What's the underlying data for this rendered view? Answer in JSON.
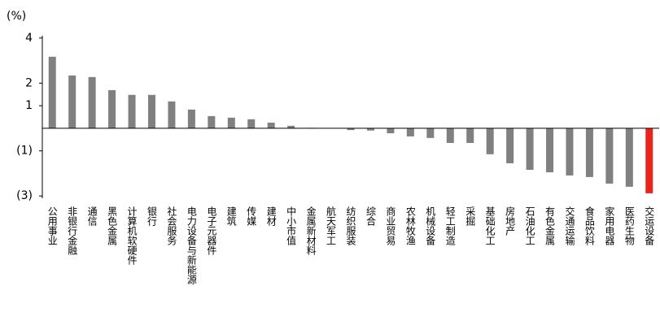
{
  "chart_data": {
    "type": "bar",
    "y_label": "(%)",
    "categories": [
      "公用事业",
      "非银行金融",
      "通信",
      "黑色金属",
      "计算机软硬件",
      "银行",
      "社会服务",
      "电力设备与新能源",
      "电子元器件",
      "建筑",
      "传媒",
      "建材",
      "中小市值",
      "金属新材料",
      "航天军工",
      "纺织服装",
      "综合",
      "商业贸易",
      "农林牧渔",
      "机械设备",
      "轻工制造",
      "采掘",
      "基础化工",
      "房地产",
      "石油化工",
      "有色金属",
      "交通运输",
      "食品饮料",
      "家用电器",
      "医药生物",
      "交运设备"
    ],
    "values": [
      3.17,
      2.34,
      2.27,
      1.69,
      1.48,
      1.48,
      1.19,
      0.83,
      0.54,
      0.47,
      0.4,
      0.25,
      0.11,
      0.02,
      0.01,
      -0.08,
      -0.1,
      -0.22,
      -0.36,
      -0.43,
      -0.65,
      -0.65,
      -1.15,
      -1.55,
      -1.84,
      -1.95,
      -2.09,
      -2.16,
      -2.45,
      -2.59,
      -2.88
    ],
    "color": "#808080",
    "colors": [
      "#808080",
      "#808080",
      "#808080",
      "#808080",
      "#808080",
      "#808080",
      "#808080",
      "#808080",
      "#808080",
      "#808080",
      "#808080",
      "#808080",
      "#808080",
      "#808080",
      "#808080",
      "#808080",
      "#808080",
      "#808080",
      "#808080",
      "#808080",
      "#808080",
      "#808080",
      "#808080",
      "#808080",
      "#808080",
      "#808080",
      "#808080",
      "#808080",
      "#808080",
      "#808080",
      "#e8251b"
    ],
    "ylim": [
      -3.1,
      4.1
    ],
    "yticks": [
      4,
      2,
      1,
      {
        "value": -1,
        "label": "(1)"
      },
      {
        "value": -3,
        "label": "(3)"
      }
    ],
    "grid": false
  }
}
